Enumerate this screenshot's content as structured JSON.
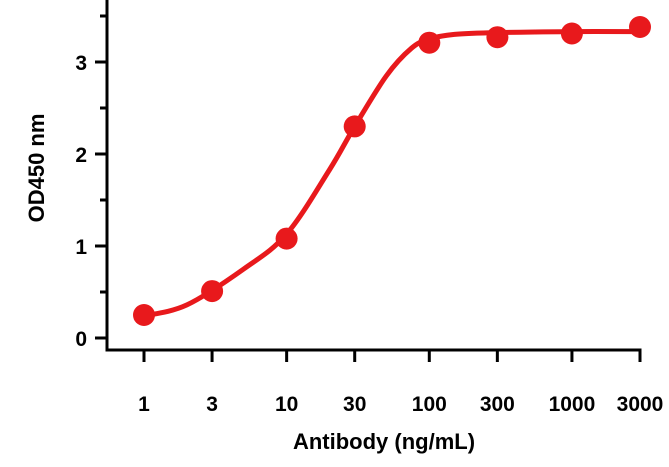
{
  "chart_data": {
    "type": "line",
    "title": "",
    "xlabel": "Antibody (ng/mL)",
    "ylabel": "OD450 nm",
    "x_scale": "log",
    "x_ticks": [
      1,
      3,
      10,
      30,
      100,
      300,
      1000,
      3000
    ],
    "x_tick_labels": [
      "1",
      "3",
      "10",
      "30",
      "100",
      "300",
      "1000",
      "3000"
    ],
    "y_ticks": [
      0,
      1,
      2,
      3
    ],
    "y_tick_labels": [
      "0",
      "1",
      "2",
      "3"
    ],
    "ylim": [
      -0.1,
      3.6
    ],
    "grid": false,
    "legend": "none",
    "series": [
      {
        "color": "#e8191c",
        "x": [
          1,
          3,
          10,
          30,
          100,
          300,
          1000,
          3000
        ],
        "values": [
          0.25,
          0.51,
          1.08,
          2.3,
          3.21,
          3.27,
          3.31,
          3.38
        ],
        "curve_fit": [
          [
            1,
            0.24
          ],
          [
            2,
            0.36
          ],
          [
            5,
            0.75
          ],
          [
            10,
            1.13
          ],
          [
            20,
            1.83
          ],
          [
            30,
            2.3
          ],
          [
            50,
            2.85
          ],
          [
            75,
            3.15
          ],
          [
            100,
            3.25
          ],
          [
            150,
            3.3
          ],
          [
            300,
            3.32
          ],
          [
            1000,
            3.33
          ],
          [
            3000,
            3.33
          ]
        ]
      }
    ]
  }
}
